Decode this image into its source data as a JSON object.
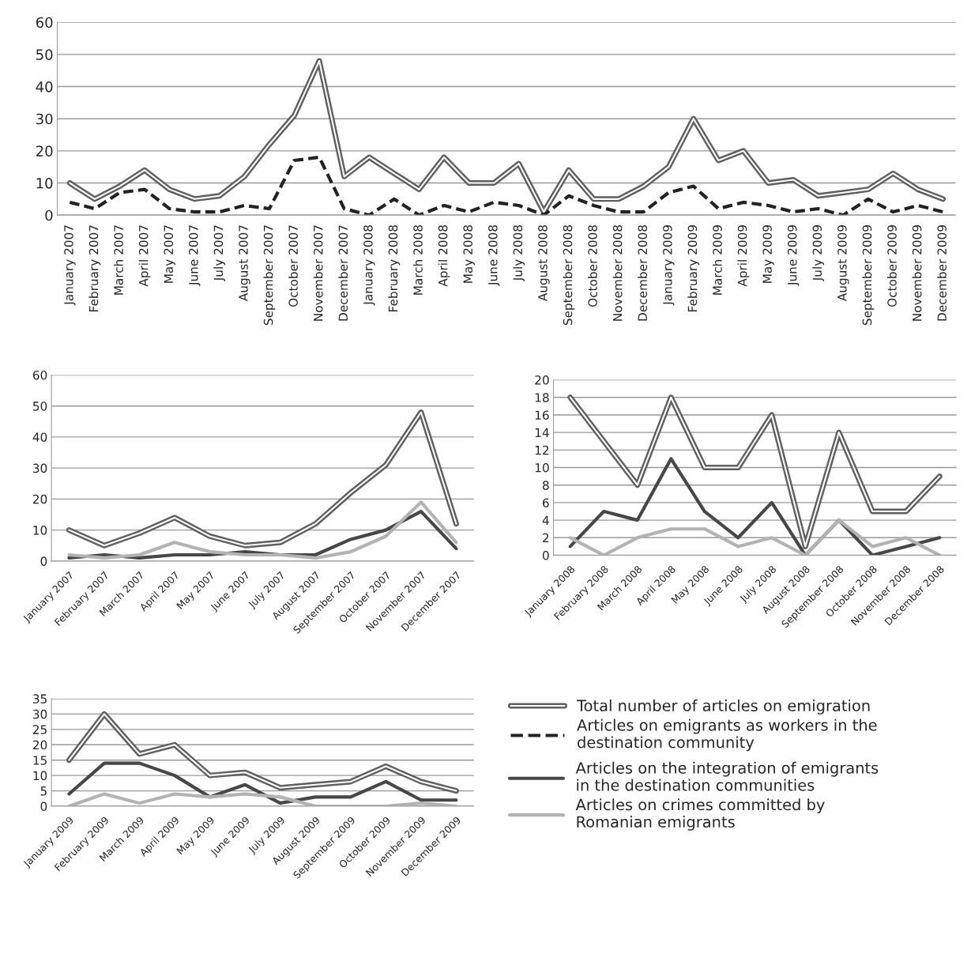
{
  "chart_data": [
    {
      "type": "line",
      "categories": [
        "January 2007",
        "February 2007",
        "March 2007",
        "April 2007",
        "May 2007",
        "June 2007",
        "July 2007",
        "August 2007",
        "September 2007",
        "October 2007",
        "November 2007",
        "December 2007",
        "January 2008",
        "February 2008",
        "March 2008",
        "April 2008",
        "May 2008",
        "June 2008",
        "July 2008",
        "August 2008",
        "September 2008",
        "October 2008",
        "November 2008",
        "December 2008",
        "January 2009",
        "February 2009",
        "March 2009",
        "April 2009",
        "May 2009",
        "June 2009",
        "July 2009",
        "August 2009",
        "September 2009",
        "October 2009",
        "November 2009",
        "December 2009"
      ],
      "series": [
        {
          "name": "Total number of articles on emigration",
          "color": "#5f5f5f",
          "line_style": "solid",
          "values": [
            10,
            5,
            9,
            14,
            8,
            5,
            6,
            12,
            22,
            31,
            48,
            12,
            18,
            13,
            8,
            18,
            10,
            10,
            16,
            1,
            14,
            5,
            5,
            9,
            15,
            30,
            17,
            20,
            10,
            11,
            6,
            7,
            8,
            13,
            8,
            5
          ]
        },
        {
          "name": "Articles on emigrants as workers in the\ndestination community",
          "color": "#222222",
          "line_style": "dashed",
          "values": [
            4,
            2,
            7,
            8,
            2,
            1,
            1,
            3,
            2,
            17,
            18,
            2,
            0,
            5,
            0,
            3,
            1,
            4,
            3,
            0,
            6,
            3,
            1,
            1,
            7,
            9,
            2,
            4,
            3,
            1,
            2,
            0,
            5,
            1,
            3,
            1
          ]
        }
      ],
      "ylim": [
        0,
        60
      ],
      "yticks": [
        0,
        10,
        20,
        30,
        40,
        50,
        60
      ],
      "grid": "y",
      "legend": "bottom right"
    },
    {
      "type": "line",
      "categories": [
        "January 2007",
        "February 2007",
        "March 2007",
        "April 2007",
        "May 2007",
        "June 2007",
        "July 2007",
        "August 2007",
        "September 2007",
        "October 2007",
        "November 2007",
        "December 2007"
      ],
      "series": [
        {
          "color": "#5f5f5f",
          "line_style": "solid",
          "values": [
            10,
            5,
            9,
            14,
            8,
            5,
            6,
            12,
            22,
            31,
            48,
            12
          ]
        },
        {
          "color": "#474747",
          "line_style": "solid",
          "values": [
            1,
            2,
            1,
            2,
            2,
            3,
            2,
            2,
            7,
            10,
            16,
            4
          ]
        },
        {
          "color": "#b3b3b3",
          "line_style": "solid",
          "values": [
            2,
            1,
            2,
            6,
            3,
            2,
            2,
            1,
            3,
            8,
            19,
            6
          ]
        }
      ],
      "ylim": [
        0,
        60
      ],
      "yticks": [
        0,
        10,
        20,
        30,
        40,
        50,
        60
      ],
      "grid": "y"
    },
    {
      "type": "line",
      "categories": [
        "January 2008",
        "February 2008",
        "March 2008",
        "April 2008",
        "May 2008",
        "June 2008",
        "July 2008",
        "August 2008",
        "September 2008",
        "October 2008",
        "November 2008",
        "December 2008"
      ],
      "series": [
        {
          "color": "#5f5f5f",
          "line_style": "solid",
          "values": [
            18,
            13,
            8,
            18,
            10,
            10,
            16,
            1,
            14,
            5,
            5,
            9
          ]
        },
        {
          "color": "#474747",
          "line_style": "solid",
          "values": [
            1,
            5,
            4,
            11,
            5,
            2,
            6,
            0,
            4,
            0,
            1,
            2
          ]
        },
        {
          "color": "#b3b3b3",
          "line_style": "solid",
          "values": [
            2,
            0,
            2,
            3,
            3,
            1,
            2,
            0,
            4,
            1,
            2,
            0
          ]
        }
      ],
      "ylim": [
        0,
        20
      ],
      "yticks": [
        0,
        2,
        4,
        6,
        8,
        10,
        12,
        14,
        16,
        18,
        20
      ],
      "grid": "y"
    },
    {
      "type": "line",
      "categories": [
        "January 2009",
        "February 2009",
        "March 2009",
        "April 2009",
        "May 2009",
        "June 2009",
        "July 2009",
        "August 2009",
        "September 2009",
        "October 2009",
        "November 2009",
        "December 2009"
      ],
      "series": [
        {
          "color": "#5f5f5f",
          "line_style": "solid",
          "values": [
            15,
            30,
            17,
            20,
            10,
            11,
            6,
            7,
            8,
            13,
            8,
            5
          ]
        },
        {
          "name": "Articles on the integration of emigrants\nin the destination communities",
          "color": "#474747",
          "line_style": "solid",
          "values": [
            4,
            14,
            14,
            10,
            3,
            7,
            1,
            3,
            3,
            8,
            2,
            2
          ]
        },
        {
          "name": "Articles on crimes committed by\nRomanian emigrants",
          "color": "#b3b3b3",
          "line_style": "solid",
          "values": [
            0,
            4,
            1,
            4,
            3,
            4,
            3,
            0,
            0,
            0,
            1,
            0
          ]
        }
      ],
      "ylim": [
        0,
        35
      ],
      "yticks": [
        0,
        5,
        10,
        15,
        20,
        25,
        30,
        35
      ],
      "grid": "y",
      "legend": "right"
    }
  ]
}
